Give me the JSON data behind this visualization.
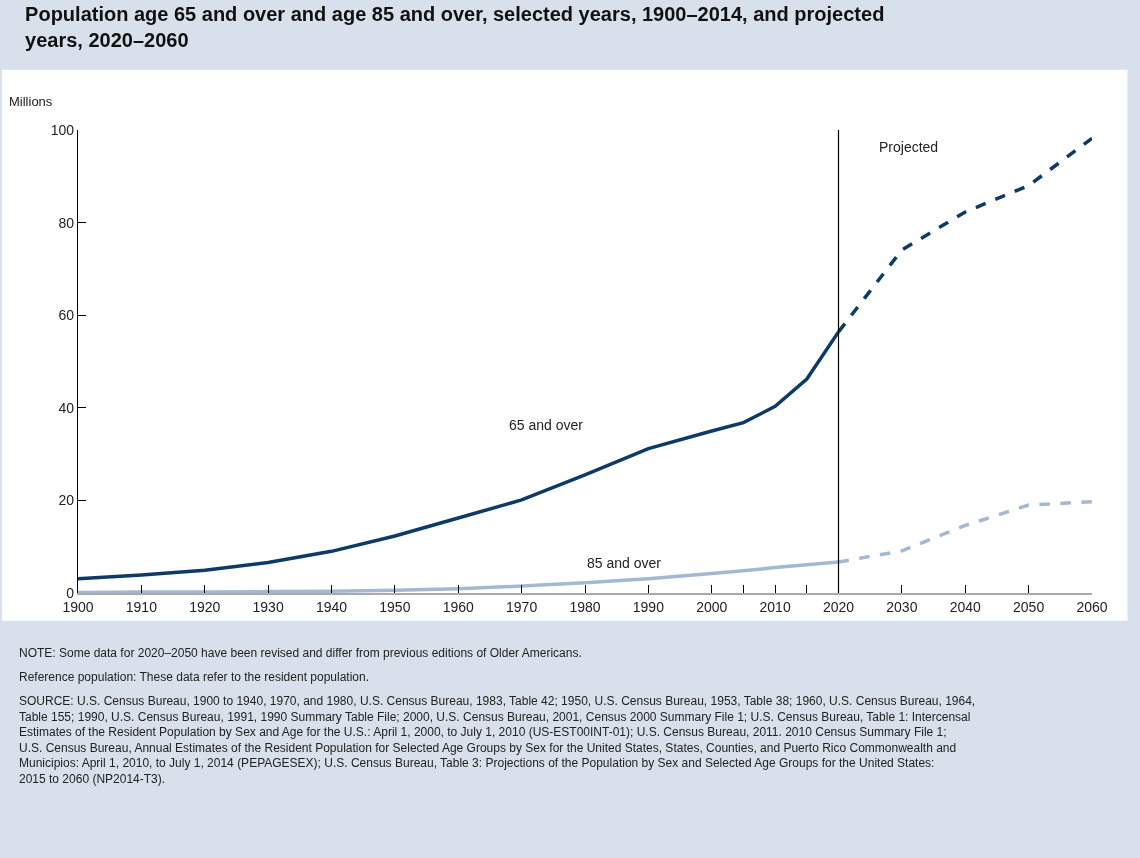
{
  "chart_data": {
    "type": "line",
    "title": "Population age 65 and over and age 85 and over, selected years, 1900–2014, and projected years, 2020–2060",
    "ylabel": "Millions",
    "xlim": [
      1900,
      2060
    ],
    "xticks": [
      1900,
      1910,
      1920,
      1930,
      1940,
      1950,
      1960,
      1970,
      1980,
      1990,
      2000,
      {
        "value": 2005,
        "label": null
      },
      2010,
      {
        "value": 2015,
        "label": null
      },
      2020,
      2030,
      2040,
      2050,
      2060
    ],
    "ylim": [
      0,
      100
    ],
    "yticks": [
      0,
      20,
      40,
      60,
      80,
      100
    ],
    "legend": false,
    "series": [
      {
        "name": "65 and over",
        "color": "#0d3a66",
        "line_style": "solid",
        "x": [
          1900,
          1910,
          1920,
          1930,
          1940,
          1950,
          1960,
          1970,
          1980,
          1990,
          2000,
          2005,
          2010,
          2015,
          2020
        ],
        "values": [
          3.1,
          3.9,
          4.9,
          6.6,
          9.0,
          12.3,
          16.2,
          20.1,
          25.5,
          31.2,
          35.0,
          36.8,
          40.3,
          46.2,
          56.4
        ]
      },
      {
        "color": "#0d3a66",
        "line_style": "dashed",
        "x": [
          2020,
          2030,
          2040,
          2050,
          2060
        ],
        "values": [
          56.4,
          74.1,
          82.3,
          88.0,
          98.2
        ]
      },
      {
        "name": "85 and over",
        "color": "#a3b9d3",
        "line_style": "solid",
        "x": [
          1900,
          1910,
          1920,
          1930,
          1940,
          1950,
          1960,
          1970,
          1980,
          1990,
          2000,
          2005,
          2010,
          2015,
          2020
        ],
        "values": [
          0.1,
          0.2,
          0.2,
          0.3,
          0.4,
          0.6,
          0.9,
          1.5,
          2.2,
          3.1,
          4.2,
          4.8,
          5.5,
          6.1,
          6.7
        ]
      },
      {
        "color": "#a3b9d3",
        "line_style": "dashed",
        "x": [
          2020,
          2030,
          2040,
          2050,
          2060
        ],
        "values": [
          6.7,
          9.1,
          14.6,
          19.0,
          19.7
        ]
      }
    ],
    "ref_lines": [
      {
        "axis": "x",
        "value": 2020,
        "color": "#000000",
        "line_style": "solid"
      }
    ],
    "annotations": [
      "Projected",
      "NOTE: Some data for 2020–2050 have been revised and differ from previous editions of Older Americans.",
      "Reference population: These data refer to the resident population.",
      "SOURCE: U.S. Census Bureau, 1900 to 1940, 1970, and 1980, U.S. Census Bureau, 1983, Table 42; 1950, U.S. Census Bureau, 1953, Table 38; 1960, U.S. Census Bureau, 1964, Table 155; 1990, U.S. Census Bureau, 1991, 1990 Summary Table File; 2000, U.S. Census Bureau, 2001, Census 2000 Summary File 1; U.S. Census Bureau, Table 1: Intercensal Estimates of the Resident Population by Sex and Age for the U.S.: April 1, 2000, to July 1, 2010 (US-EST00INT-01); U.S. Census Bureau, 2011. 2010 Census Summary File 1; U.S. Census Bureau, Annual Estimates of the Resident Population for Selected Age Groups by Sex for the United States, States, Counties, and Puerto Rico Commonwealth and Municipios: April 1, 2010, to July 1, 2014 (PEPAGESEX); U.S. Census Bureau, Table 3: Projections of the Population by Sex and Selected Age Groups for the United States: 2015 to 2060 (NP2014-T3)."
    ]
  }
}
